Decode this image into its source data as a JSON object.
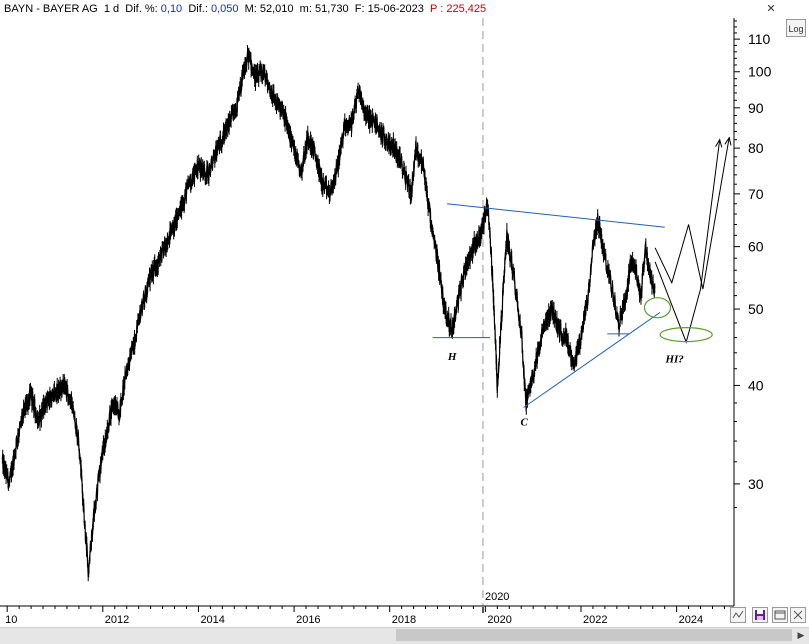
{
  "header": {
    "symbol": "BAYN",
    "sep": " - ",
    "name": "BAYER AG",
    "period": "1 d",
    "dif_pct_label": "Dif. %:",
    "dif_pct": "0,10",
    "dif_label": "Dif.:",
    "dif": "0,050",
    "max_label": "M:",
    "max": "52,010",
    "min_label": "m:",
    "min": "51,730",
    "date_label": "F:",
    "date": "15-06-2023",
    "price_label": "P :",
    "price": "225,425"
  },
  "controls": {
    "close_glyph": "✕",
    "log_label": "Log"
  },
  "chart_data": {
    "type": "line",
    "scale": "log",
    "x_ticks": [
      "10",
      "2012",
      "2014",
      "2016",
      "2018",
      "2020",
      "2022",
      "2024"
    ],
    "x_tick_years": [
      2010,
      2012,
      2014,
      2016,
      2018,
      2020,
      2022,
      2024
    ],
    "cursor_label": "2020",
    "cursor_year": 2019.95,
    "y_ticks": [
      110,
      100,
      90,
      80,
      70,
      60,
      50,
      40,
      30
    ],
    "xlim": [
      2009.85,
      2025.2
    ],
    "ylim": [
      21.0,
      117.0
    ],
    "grid": false,
    "series": [
      {
        "values_by_year": [
          [
            2009.9,
            32
          ],
          [
            2010.05,
            30
          ],
          [
            2010.2,
            34
          ],
          [
            2010.35,
            37
          ],
          [
            2010.5,
            39
          ],
          [
            2010.65,
            36
          ],
          [
            2010.8,
            38
          ],
          [
            2011.0,
            39
          ],
          [
            2011.2,
            40
          ],
          [
            2011.35,
            38
          ],
          [
            2011.5,
            34
          ],
          [
            2011.6,
            28
          ],
          [
            2011.7,
            23
          ],
          [
            2011.8,
            27
          ],
          [
            2011.9,
            30
          ],
          [
            2012.0,
            33
          ],
          [
            2012.1,
            35
          ],
          [
            2012.2,
            38
          ],
          [
            2012.35,
            37
          ],
          [
            2012.5,
            42
          ],
          [
            2012.65,
            45
          ],
          [
            2012.8,
            50
          ],
          [
            2013.0,
            55
          ],
          [
            2013.2,
            58
          ],
          [
            2013.4,
            62
          ],
          [
            2013.6,
            66
          ],
          [
            2013.8,
            72
          ],
          [
            2014.0,
            76
          ],
          [
            2014.2,
            74
          ],
          [
            2014.4,
            80
          ],
          [
            2014.6,
            85
          ],
          [
            2014.8,
            90
          ],
          [
            2014.95,
            100
          ],
          [
            2015.05,
            105
          ],
          [
            2015.2,
            98
          ],
          [
            2015.35,
            100
          ],
          [
            2015.5,
            95
          ],
          [
            2015.65,
            91
          ],
          [
            2015.8,
            88
          ],
          [
            2016.0,
            80
          ],
          [
            2016.15,
            75
          ],
          [
            2016.3,
            83
          ],
          [
            2016.45,
            78
          ],
          [
            2016.6,
            72
          ],
          [
            2016.75,
            70
          ],
          [
            2016.9,
            75
          ],
          [
            2017.05,
            85
          ],
          [
            2017.2,
            86
          ],
          [
            2017.35,
            95
          ],
          [
            2017.5,
            88
          ],
          [
            2017.7,
            86
          ],
          [
            2017.9,
            82
          ],
          [
            2018.1,
            80
          ],
          [
            2018.3,
            75
          ],
          [
            2018.45,
            70
          ],
          [
            2018.55,
            80
          ],
          [
            2018.7,
            76
          ],
          [
            2018.75,
            72
          ],
          [
            2018.9,
            62
          ],
          [
            2019.0,
            58
          ],
          [
            2019.15,
            50
          ],
          [
            2019.3,
            47
          ],
          [
            2019.45,
            52
          ],
          [
            2019.6,
            57
          ],
          [
            2019.75,
            60
          ],
          [
            2019.9,
            62
          ],
          [
            2020.05,
            68
          ],
          [
            2020.15,
            55
          ],
          [
            2020.25,
            40
          ],
          [
            2020.35,
            50
          ],
          [
            2020.45,
            62
          ],
          [
            2020.6,
            55
          ],
          [
            2020.75,
            47
          ],
          [
            2020.85,
            38
          ],
          [
            2020.95,
            40
          ],
          [
            2021.1,
            44
          ],
          [
            2021.25,
            48
          ],
          [
            2021.4,
            50
          ],
          [
            2021.55,
            47
          ],
          [
            2021.7,
            46
          ],
          [
            2021.85,
            42
          ],
          [
            2022.0,
            46
          ],
          [
            2022.15,
            52
          ],
          [
            2022.25,
            60
          ],
          [
            2022.35,
            65
          ],
          [
            2022.5,
            58
          ],
          [
            2022.65,
            53
          ],
          [
            2022.8,
            48
          ],
          [
            2022.95,
            52
          ],
          [
            2023.05,
            58
          ],
          [
            2023.15,
            56
          ],
          [
            2023.25,
            52
          ],
          [
            2023.35,
            60
          ],
          [
            2023.45,
            55
          ],
          [
            2023.55,
            52
          ]
        ]
      }
    ],
    "annotations": {
      "labels": [
        {
          "text": "H",
          "year": 2019.3,
          "value": 43.6
        },
        {
          "text": "C",
          "year": 2020.82,
          "value": 36.0
        },
        {
          "text": "HI?",
          "year": 2023.85,
          "value": 43.3
        }
      ],
      "resistance_line": [
        [
          2019.2,
          68.0
        ],
        [
          2023.75,
          63.5
        ]
      ],
      "support_line": [
        [
          2020.8,
          37.5
        ],
        [
          2023.65,
          49.5
        ]
      ],
      "neck_left": [
        [
          2018.9,
          46.0
        ],
        [
          2020.1,
          46.0
        ]
      ],
      "neck_right": [
        [
          2022.55,
          46.5
        ],
        [
          2023.0,
          46.5
        ]
      ],
      "ellipses": [
        [
          2023.6,
          50.2
        ],
        [
          2024.2,
          46.4
        ]
      ],
      "projection_a": [
        [
          2023.55,
          59.8
        ],
        [
          2023.9,
          54.0
        ],
        [
          2024.25,
          64.0
        ],
        [
          2024.55,
          53.0
        ],
        [
          2025.1,
          82.5
        ]
      ],
      "projection_b": [
        [
          2023.55,
          57.4
        ],
        [
          2024.2,
          45.4
        ],
        [
          2024.5,
          53.0
        ],
        [
          2024.9,
          82.0
        ]
      ],
      "dashed_cursor_year": 2019.95
    },
    "colors": {
      "price": "#000000",
      "trendline": "#1f5fbf",
      "ellipse": "#5aa02c",
      "projection": "#000000",
      "axis_text": "#000000",
      "cursor": "#9a9a9a"
    }
  }
}
